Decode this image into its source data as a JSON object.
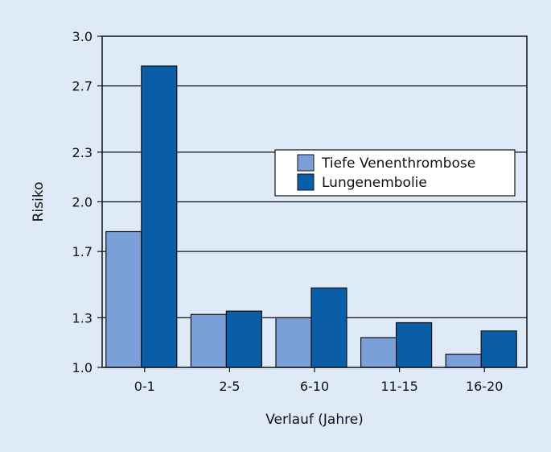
{
  "chart_data": {
    "type": "bar",
    "title": "",
    "xlabel": "Verlauf (Jahre)",
    "ylabel": "Risiko",
    "categories": [
      "0-1",
      "2-5",
      "6-10",
      "11-15",
      "16-20"
    ],
    "series": [
      {
        "name": "Tiefe Venenthrombose",
        "values": [
          1.82,
          1.32,
          1.3,
          1.18,
          1.08
        ],
        "color": "#7b9fd9"
      },
      {
        "name": "Lungenembolie",
        "values": [
          2.82,
          1.34,
          1.48,
          1.27,
          1.22
        ],
        "color": "#0a5ea8"
      }
    ],
    "yticks": [
      "1.0",
      "1.3",
      "1.7",
      "2.0",
      "2.3",
      "2.7",
      "3.0"
    ],
    "ylim": [
      1.0,
      3.0
    ],
    "grid": true,
    "legend_position": "right"
  }
}
